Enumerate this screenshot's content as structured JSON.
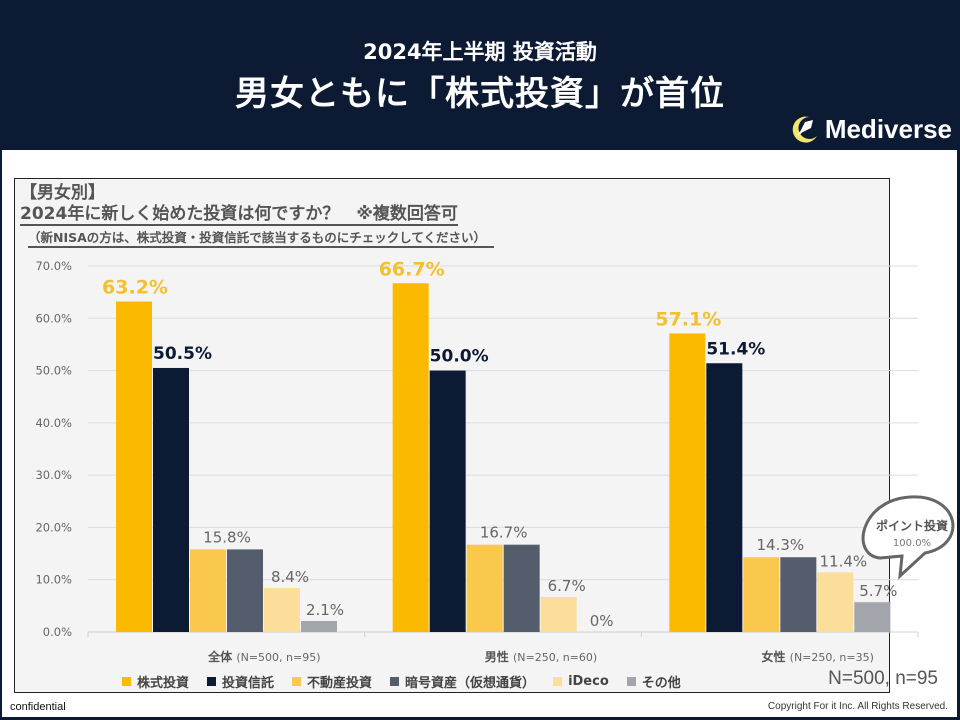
{
  "header": {
    "subtitle": "2024年上半期 投資活動",
    "title": "男女ともに「株式投資」が首位",
    "brand": "Mediverse",
    "brand_icon": "crescent-rocket-icon"
  },
  "question": {
    "heading": "【男女別】",
    "text": "2024年に新しく始めた投資は何ですか？　※複数回答可",
    "note": "（新NISAの方は、株式投資・投資信託で該当するものにチェックしてください）"
  },
  "callout": {
    "title": "ポイント投資",
    "value": "100.0%"
  },
  "sample_label": "N=500, n=95",
  "footer": {
    "confidential": "confidential",
    "copyright": "Copyright For it Inc. All Rights Reserved."
  },
  "colors": {
    "stock": "#fbb900",
    "fund": "#0c1a33",
    "realestate": "#fbc84e",
    "crypto": "#545d6b",
    "ideco": "#fbde99",
    "other": "#a2a5ab"
  },
  "chart_data": {
    "type": "bar",
    "title": "2024年に新しく始めた投資は何ですか？",
    "xlabel": "",
    "ylabel": "",
    "ylim": [
      0,
      70
    ],
    "yticks": [
      "0.0%",
      "10.0%",
      "20.0%",
      "30.0%",
      "40.0%",
      "50.0%",
      "60.0%",
      "70.0%"
    ],
    "grid": true,
    "legend_position": "bottom",
    "categories": [
      {
        "name": "全体",
        "sub": "(N=500, n=95)"
      },
      {
        "name": "男性",
        "sub": "(N=250, n=60)"
      },
      {
        "name": "女性",
        "sub": "(N=250, n=35)"
      }
    ],
    "series": [
      {
        "name": "株式投資",
        "values": [
          63.2,
          66.7,
          57.1
        ],
        "labels": [
          "63.2%",
          "66.7%",
          "57.1%"
        ]
      },
      {
        "name": "投資信託",
        "values": [
          50.5,
          50.0,
          51.4
        ],
        "labels": [
          "50.5%",
          "50.0%",
          "51.4%"
        ]
      },
      {
        "name": "不動産投資",
        "values": [
          15.8,
          16.7,
          14.3
        ],
        "labels": [
          "15.8%",
          "16.7%",
          "14.3%"
        ]
      },
      {
        "name": "暗号資産（仮想通貨）",
        "values": [
          15.8,
          16.7,
          14.3
        ],
        "labels": [
          "",
          "",
          ""
        ]
      },
      {
        "name": "iDeco",
        "values": [
          8.4,
          6.7,
          11.4
        ],
        "labels": [
          "8.4%",
          "6.7%",
          "11.4%"
        ]
      },
      {
        "name": "その他",
        "values": [
          2.1,
          0,
          5.7
        ],
        "labels": [
          "2.1%",
          "0%",
          "5.7%"
        ]
      }
    ]
  }
}
